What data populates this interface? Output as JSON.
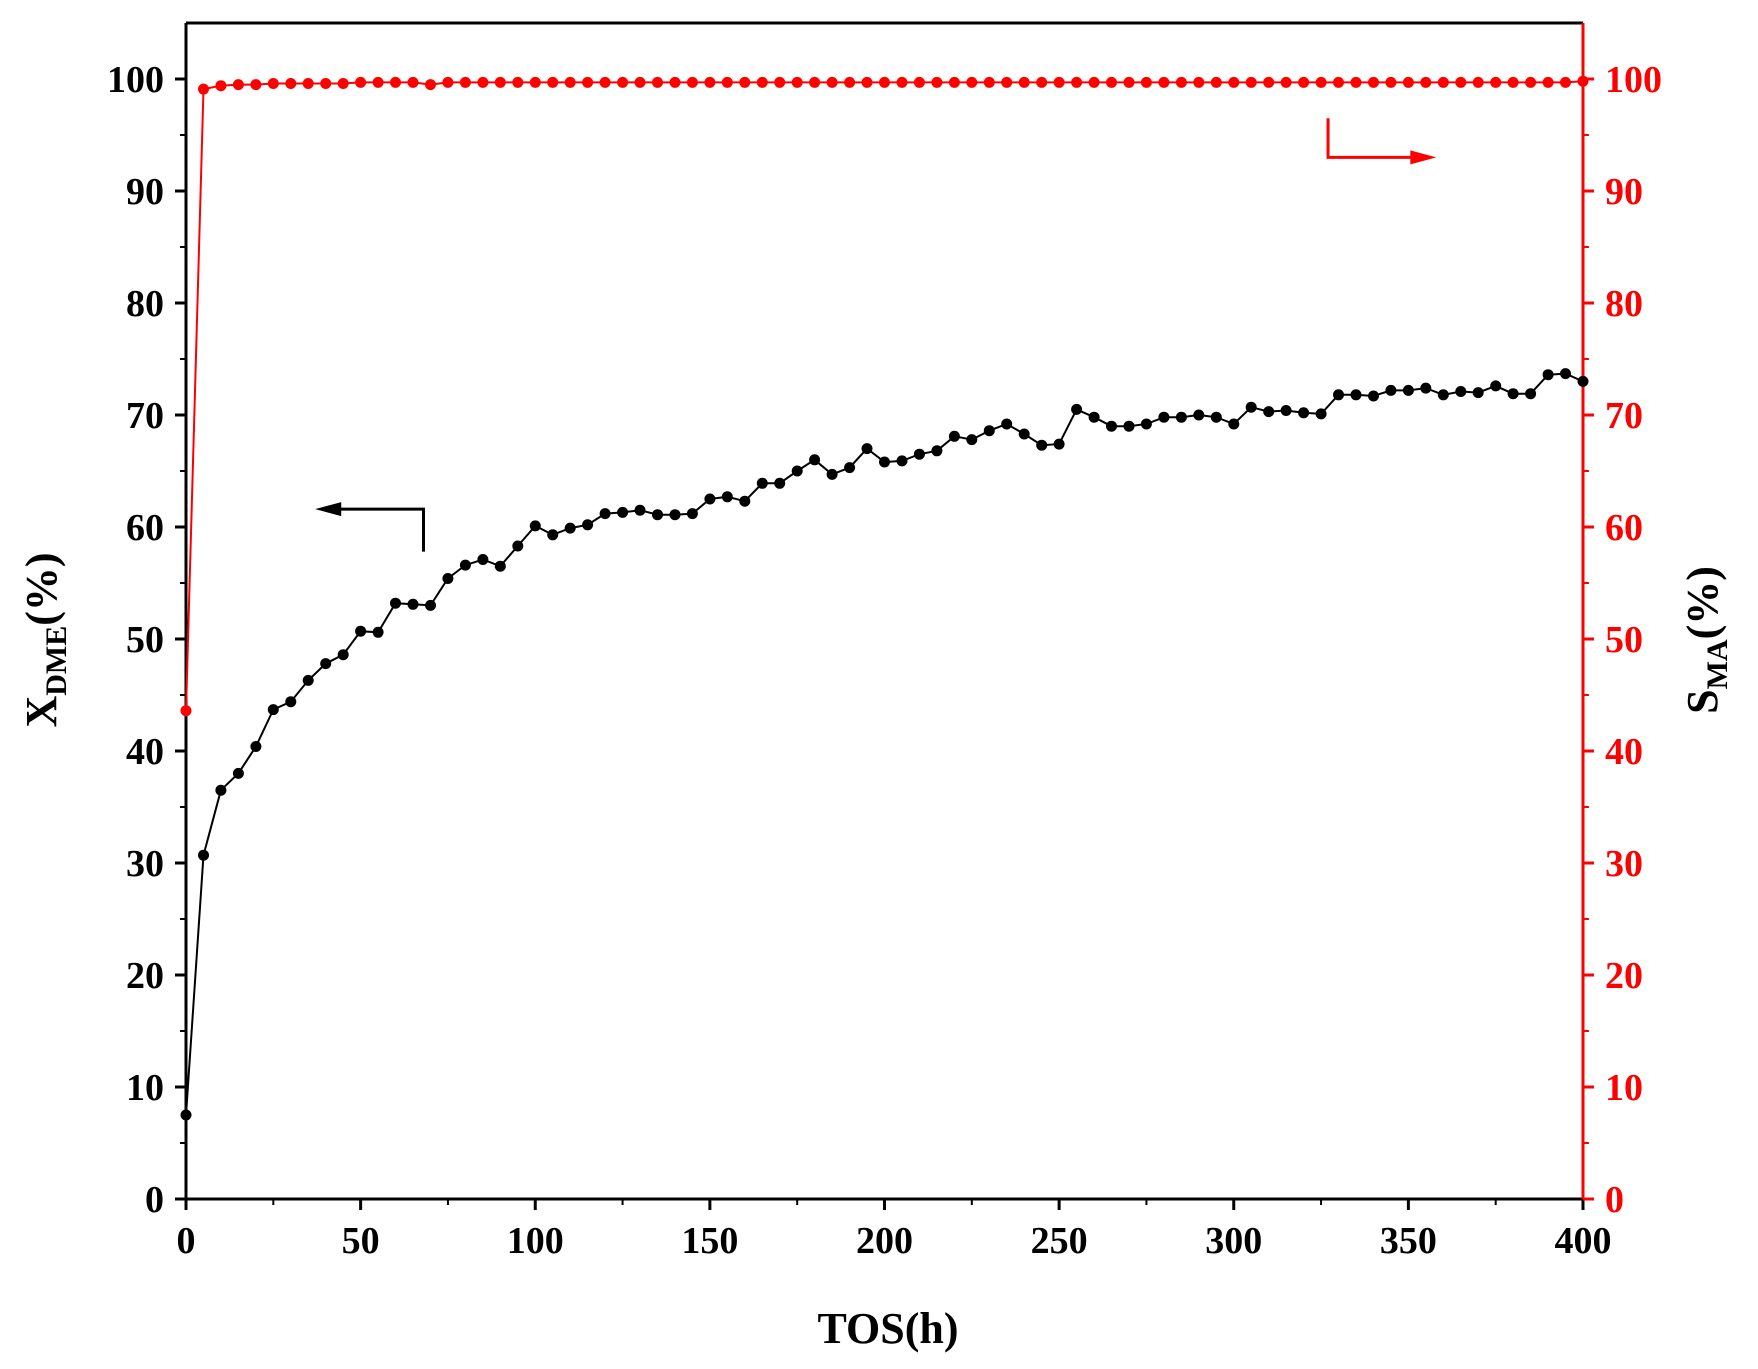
{
  "chart_data": {
    "type": "line",
    "title": "",
    "xlabel": "TOS(h)",
    "ylabel_left": {
      "main": "X",
      "sub": "DME",
      "suffix": "(%)"
    },
    "ylabel_right": {
      "main": "S",
      "sub": "MA",
      "suffix": "(%)"
    },
    "xlim": [
      0,
      400
    ],
    "ylim_left": [
      0,
      105
    ],
    "ylim_right": [
      0,
      105
    ],
    "x_ticks": [
      "0",
      "50",
      "100",
      "150",
      "200",
      "250",
      "300",
      "350",
      "400"
    ],
    "y_ticks_left": [
      "0",
      "10",
      "20",
      "30",
      "40",
      "50",
      "60",
      "70",
      "80",
      "90",
      "100"
    ],
    "y_ticks_right": [
      "0",
      "10",
      "20",
      "30",
      "40",
      "50",
      "60",
      "70",
      "80",
      "90",
      "100"
    ],
    "grid": false,
    "series": [
      {
        "axis": "left",
        "color": "#000000",
        "marker": "circle",
        "x": [
          0,
          5,
          10,
          15,
          20,
          25,
          30,
          35,
          40,
          45,
          50,
          55,
          60,
          65,
          70,
          75,
          80,
          85,
          90,
          95,
          100,
          105,
          110,
          115,
          120,
          125,
          130,
          135,
          140,
          145,
          150,
          155,
          160,
          165,
          170,
          175,
          180,
          185,
          190,
          195,
          200,
          205,
          210,
          215,
          220,
          225,
          230,
          235,
          240,
          245,
          250,
          255,
          260,
          265,
          270,
          275,
          280,
          285,
          290,
          295,
          300,
          305,
          310,
          315,
          320,
          325,
          330,
          335,
          340,
          345,
          350,
          355,
          360,
          365,
          370,
          375,
          380,
          385,
          390,
          395,
          400
        ],
        "y": [
          7.5,
          30.7,
          36.5,
          38.0,
          40.4,
          43.7,
          44.4,
          46.3,
          47.8,
          48.6,
          50.7,
          50.6,
          53.2,
          53.1,
          53.0,
          55.4,
          56.6,
          57.1,
          56.5,
          58.3,
          60.1,
          59.3,
          59.9,
          60.2,
          61.2,
          61.3,
          61.5,
          61.1,
          61.1,
          61.2,
          62.5,
          62.7,
          62.3,
          63.9,
          63.9,
          65.0,
          66.0,
          64.7,
          65.3,
          67.0,
          65.8,
          65.9,
          66.5,
          66.8,
          68.1,
          67.8,
          68.6,
          69.2,
          68.3,
          67.3,
          67.4,
          70.5,
          69.8,
          69.0,
          69.0,
          69.2,
          69.8,
          69.8,
          70.0,
          69.8,
          69.2,
          70.7,
          70.3,
          70.4,
          70.2,
          70.1,
          71.8,
          71.8,
          71.7,
          72.2,
          72.2,
          72.4,
          71.8,
          72.1,
          72.0,
          72.6,
          71.9,
          71.9,
          73.6,
          73.7,
          73.0
        ]
      },
      {
        "axis": "right",
        "color": "#ff0000",
        "marker": "circle",
        "x": [
          0,
          5,
          10,
          15,
          20,
          25,
          30,
          35,
          40,
          45,
          50,
          55,
          60,
          65,
          70,
          75,
          80,
          85,
          90,
          95,
          100,
          105,
          110,
          115,
          120,
          125,
          130,
          135,
          140,
          145,
          150,
          155,
          160,
          165,
          170,
          175,
          180,
          185,
          190,
          195,
          200,
          205,
          210,
          215,
          220,
          225,
          230,
          235,
          240,
          245,
          250,
          255,
          260,
          265,
          270,
          275,
          280,
          285,
          290,
          295,
          300,
          305,
          310,
          315,
          320,
          325,
          330,
          335,
          340,
          345,
          350,
          355,
          360,
          365,
          370,
          375,
          380,
          385,
          390,
          395,
          400
        ],
        "y": [
          43.6,
          99.1,
          99.4,
          99.5,
          99.5,
          99.6,
          99.6,
          99.6,
          99.6,
          99.6,
          99.7,
          99.7,
          99.7,
          99.7,
          99.5,
          99.7,
          99.7,
          99.7,
          99.7,
          99.7,
          99.7,
          99.7,
          99.7,
          99.7,
          99.7,
          99.7,
          99.7,
          99.7,
          99.7,
          99.7,
          99.7,
          99.7,
          99.7,
          99.7,
          99.7,
          99.7,
          99.7,
          99.7,
          99.7,
          99.7,
          99.7,
          99.7,
          99.7,
          99.7,
          99.7,
          99.7,
          99.7,
          99.7,
          99.7,
          99.7,
          99.7,
          99.7,
          99.7,
          99.7,
          99.7,
          99.7,
          99.7,
          99.7,
          99.7,
          99.7,
          99.7,
          99.7,
          99.7,
          99.7,
          99.7,
          99.7,
          99.7,
          99.7,
          99.7,
          99.7,
          99.7,
          99.7,
          99.7,
          99.7,
          99.7,
          99.7,
          99.7,
          99.7,
          99.7,
          99.7,
          99.8
        ]
      }
    ],
    "annotations": [
      {
        "type": "arrow",
        "direction": "left",
        "axis": "left",
        "color": "#000000"
      },
      {
        "type": "arrow",
        "direction": "right",
        "axis": "right",
        "color": "#ff0000"
      }
    ]
  }
}
